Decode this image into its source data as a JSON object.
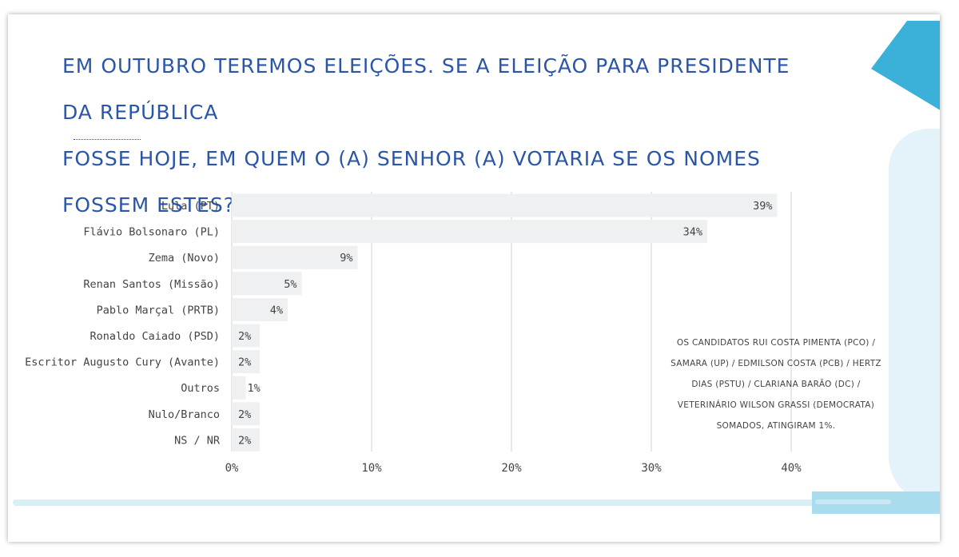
{
  "header": {
    "title_line1": "EM OUTUBRO TEREMOS ELEIÇÕES. SE A ELEIÇÃO PARA PRESIDENTE DA REPÚBLICA",
    "title_line2": "FOSSE HOJE, EM QUEM O (A) SENHOR (A) VOTARIA SE OS NOMES FOSSEM ESTES?"
  },
  "note": {
    "lines": [
      "OS CANDIDATOS  RUI COSTA PIMENTA (PCO) /",
      "SAMARA  (UP) / EDMILSON COSTA (PCB) / HERTZ",
      "DIAS (PSTU)  / CLARIANA BARÃO (DC) /",
      "VETERINÁRIO WILSON GRASSI (DEMOCRATA)",
      "SOMADOS, ATINGIRAM 1%."
    ]
  },
  "colors": {
    "title": "#2b56a8",
    "bar": "#eef0f1",
    "grid": "#d0d0d0",
    "accent": "#3bb0d9"
  },
  "chart_data": {
    "type": "bar",
    "orientation": "horizontal",
    "title": "",
    "xlabel": "",
    "ylabel": "",
    "categories": [
      "Lula (PT)",
      "Flávio Bolsonaro (PL)",
      "Zema (Novo)",
      "Renan Santos (Missão)",
      "Pablo Marçal (PRTB)",
      "Ronaldo Caiado (PSD)",
      "Escritor Augusto Cury (Avante)",
      "Outros",
      "Nulo/Branco",
      "NS / NR"
    ],
    "values": [
      39,
      34,
      9,
      5,
      4,
      2,
      2,
      1,
      2,
      2
    ],
    "value_labels": [
      "39%",
      "34%",
      "9%",
      "5%",
      "4%",
      "2%",
      "2%",
      "1%",
      "2%",
      "2%"
    ],
    "xlim": [
      0,
      40
    ],
    "xticks": [
      0,
      10,
      20,
      30,
      40
    ],
    "xtick_labels": [
      "0%",
      "10%",
      "20%",
      "30%",
      "40%"
    ],
    "grid": true
  }
}
